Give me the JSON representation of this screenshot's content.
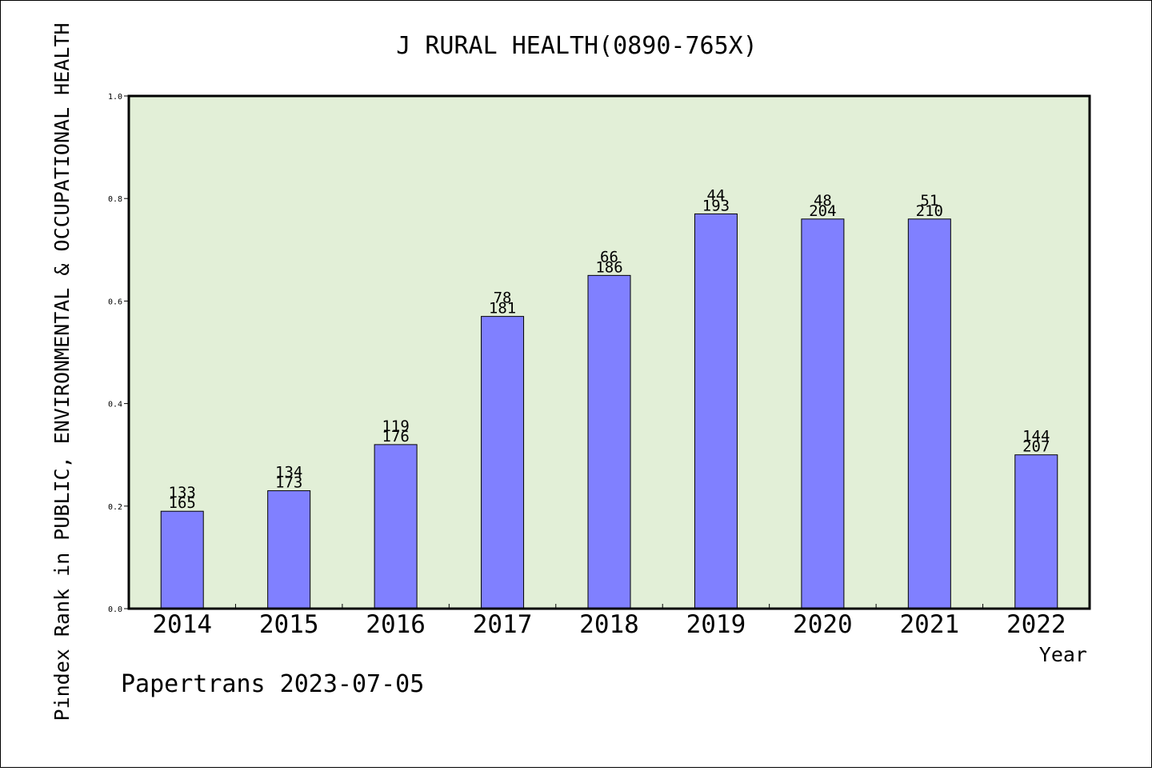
{
  "chart_data": {
    "type": "bar",
    "title": "J RURAL HEALTH(0890-765X)",
    "xlabel": "Year",
    "ylabel": "Pindex Rank in PUBLIC, ENVIRONMENTAL & OCCUPATIONAL HEALTH",
    "ylim": [
      0,
      1.0
    ],
    "yticks": [
      "0.0",
      "0.2",
      "0.4",
      "0.6",
      "0.8",
      "1.0"
    ],
    "categories": [
      "2014",
      "2015",
      "2016",
      "2017",
      "2018",
      "2019",
      "2020",
      "2021",
      "2022"
    ],
    "values": [
      0.19,
      0.23,
      0.32,
      0.57,
      0.65,
      0.77,
      0.76,
      0.76,
      0.3
    ],
    "rank_labels": [
      "133",
      "134",
      "119",
      "78",
      "66",
      "44",
      "48",
      "51",
      "144"
    ],
    "total_labels": [
      "165",
      "173",
      "176",
      "181",
      "186",
      "193",
      "204",
      "210",
      "207"
    ],
    "footer": "Papertrans 2023-07-05",
    "grid": false,
    "colors": {
      "plot_background": "#e2efd7",
      "bar_fill": "#8080ff",
      "bar_stroke": "#000000"
    }
  }
}
